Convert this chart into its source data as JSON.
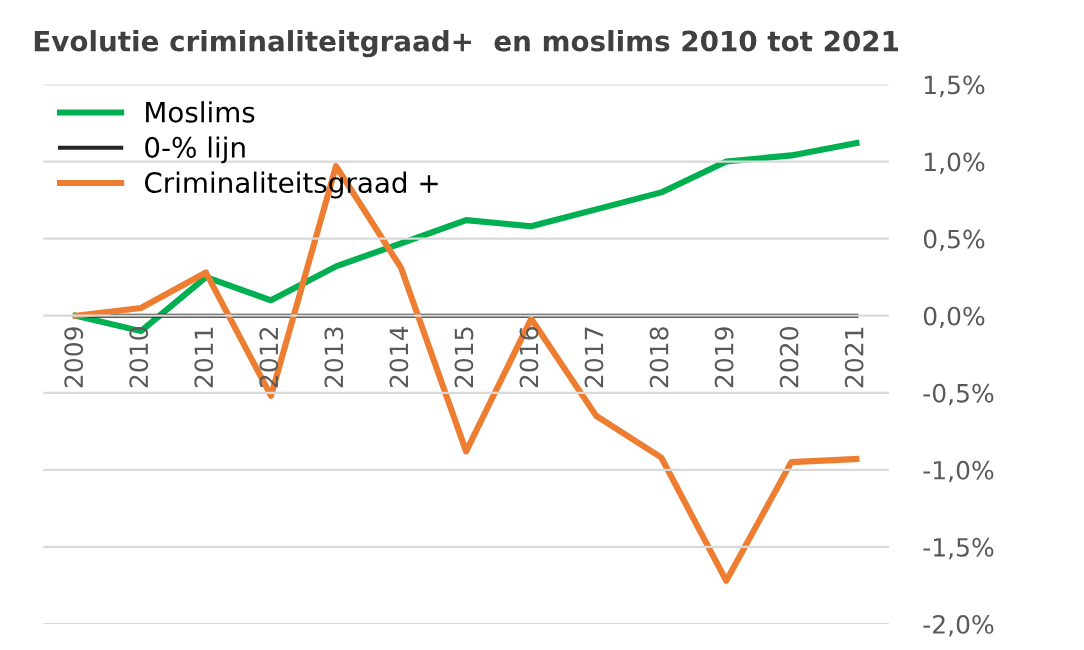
{
  "chart_data": {
    "type": "line",
    "title": "Evolutie criminaliteitgraad+  en moslims 2010 tot 2021",
    "categories": [
      "2009",
      "2010",
      "2011",
      "2012",
      "2013",
      "2014",
      "2015",
      "2016",
      "2017",
      "2018",
      "2019",
      "2020",
      "2021"
    ],
    "series": [
      {
        "name": "Moslims",
        "color": "#00b050",
        "values": [
          0,
          -0.1,
          0.25,
          0.1,
          0.32,
          0.47,
          0.62,
          0.58,
          0.69,
          0.8,
          1.0,
          1.04,
          1.12
        ]
      },
      {
        "name": "0-% lijn",
        "color": "#262626",
        "values": [
          0,
          0,
          0,
          0,
          0,
          0,
          0,
          0,
          0,
          0,
          0,
          0,
          0
        ]
      },
      {
        "name": "Criminaliteitsgraad +",
        "color": "#ed7d31",
        "values": [
          0,
          0.05,
          0.28,
          -0.52,
          0.97,
          0.31,
          -0.88,
          -0.02,
          -0.65,
          -0.92,
          -1.72,
          -0.95,
          -0.93
        ]
      }
    ],
    "ylim": [
      -2.0,
      1.5
    ],
    "yticks": [
      {
        "value": -2.0,
        "label": "-2,0%"
      },
      {
        "value": -1.5,
        "label": "-1,5%"
      },
      {
        "value": -1.0,
        "label": "-1,0%"
      },
      {
        "value": -0.5,
        "label": "-0,5%"
      },
      {
        "value": 0,
        "label": "0,0%"
      },
      {
        "value": 0.5,
        "label": "0,5%"
      },
      {
        "value": 1.0,
        "label": "1,0%"
      },
      {
        "value": 1.5,
        "label": "1,5%"
      }
    ],
    "grid": "y",
    "legend": "top left",
    "marker": "none",
    "line_style": "solid"
  }
}
